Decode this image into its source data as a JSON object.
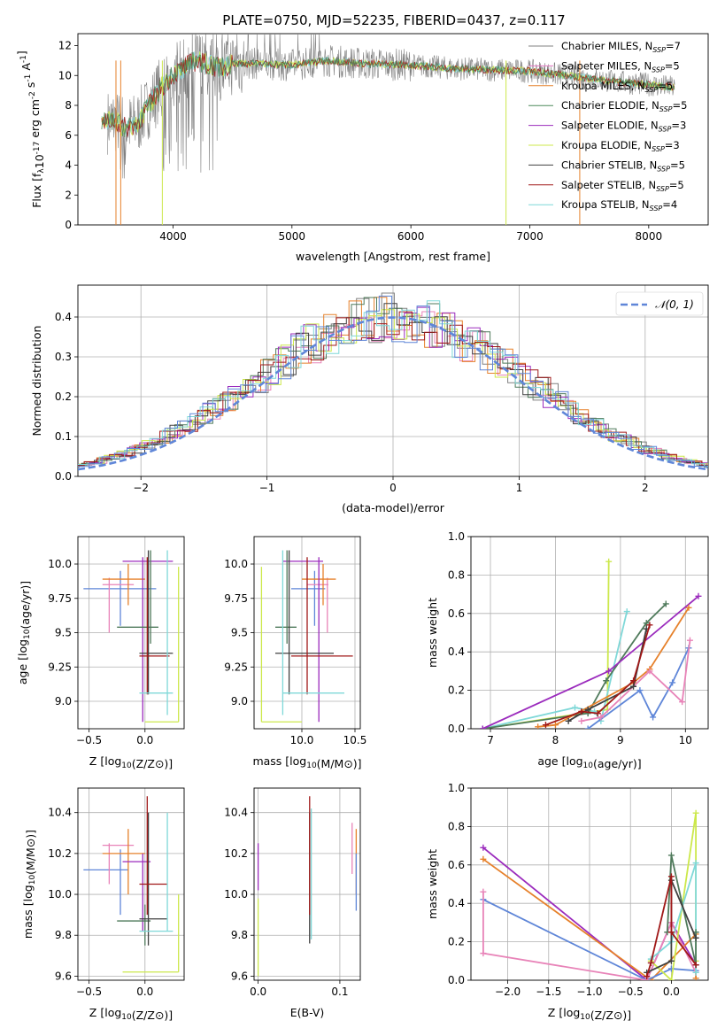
{
  "title": "PLATE=0750, MJD=52235, FIBERID=0437, z=0.117",
  "colors": {
    "Chabrier MILES": "#808080",
    "Salpeter MILES": "#e377c2",
    "Kroupa MILES": "#e6812b",
    "Chabrier ELODIE": "#4f8a5b",
    "Salpeter ELODIE": "#9b2bbd",
    "Kroupa ELODIE": "#cce84b",
    "Chabrier STELIB": "#404040",
    "Salpeter STELIB": "#a01818",
    "Kroupa STELIB": "#7fd8d8",
    "blue": "#5f86d8",
    "pink": "#e883b8",
    "darkgreen": "#4f7a5b"
  },
  "chart_data": [
    {
      "id": "spectrum",
      "type": "line",
      "xlabel": "wavelength [Angstrom, rest frame]",
      "ylabel": "Flux [f_λ10^-17 erg cm^-2 s^-1 A^-1]",
      "xlim": [
        3200,
        8500
      ],
      "ylim": [
        0,
        12.8
      ],
      "xticks": [
        4000,
        5000,
        6000,
        7000,
        8000
      ],
      "yticks": [
        0,
        2,
        4,
        6,
        8,
        10,
        12
      ],
      "legend": {
        "position": "top-right",
        "entries": [
          {
            "label": "Chabrier MILES, N",
            "sub": "SSP",
            "suffix": "=7"
          },
          {
            "label": "Salpeter MILES, N",
            "sub": "SSP",
            "suffix": "=5"
          },
          {
            "label": "Kroupa MILES, N",
            "sub": "SSP",
            "suffix": "=5"
          },
          {
            "label": "Chabrier ELODIE, N",
            "sub": "SSP",
            "suffix": "=5"
          },
          {
            "label": "Salpeter ELODIE, N",
            "sub": "SSP",
            "suffix": "=3"
          },
          {
            "label": "Kroupa ELODIE, N",
            "sub": "SSP",
            "suffix": "=3"
          },
          {
            "label": "Chabrier STELIB, N",
            "sub": "SSP",
            "suffix": "=5"
          },
          {
            "label": "Salpeter STELIB, N",
            "sub": "SSP",
            "suffix": "=5"
          },
          {
            "label": "Kroupa STELIB, N",
            "sub": "SSP",
            "suffix": "=4"
          }
        ]
      },
      "data_trend": {
        "x": [
          3400,
          3500,
          3600,
          3700,
          3800,
          3900,
          4000,
          4100,
          4200,
          4300,
          4400,
          4500,
          4700,
          5000,
          5300,
          5600,
          6000,
          6300,
          6600,
          7000,
          7300,
          7500,
          7700,
          8000,
          8200
        ],
        "y": [
          6.8,
          7.0,
          6.5,
          6.8,
          8.0,
          9.2,
          10.0,
          10.6,
          11.0,
          10.7,
          10.5,
          10.8,
          10.8,
          10.7,
          11.0,
          10.8,
          10.7,
          10.5,
          10.4,
          10.3,
          10.0,
          9.8,
          9.6,
          9.4,
          9.2
        ]
      },
      "model_edges": [
        {
          "color": "Kroupa MILES",
          "x": [
            3520,
            3560,
            7420
          ]
        },
        {
          "color": "Kroupa ELODIE",
          "x": [
            3910,
            6800
          ]
        }
      ]
    },
    {
      "id": "residuals",
      "type": "histogram",
      "xlabel": "(data-model)/error",
      "ylabel": "Normed distribution",
      "xlim": [
        -2.5,
        2.5
      ],
      "ylim": [
        0,
        0.48
      ],
      "xticks": [
        -2,
        -1,
        0,
        1,
        2
      ],
      "yticks": [
        0.0,
        0.1,
        0.2,
        0.3,
        0.4
      ],
      "reference_label": "𝒩(0, 1)",
      "legend_position": "top-right"
    },
    {
      "id": "age_vs_Z",
      "type": "errorbar",
      "xlabel": "Z [log10(Z/Z⊙)]",
      "ylabel": "age  [log10(age/yr)]",
      "xlim": [
        -0.6,
        0.35
      ],
      "ylim": [
        8.8,
        10.2
      ],
      "xticks": [
        -0.5,
        0.0
      ],
      "yticks": [
        9.0,
        9.25,
        9.5,
        9.75,
        10.0
      ],
      "points": [
        {
          "c": "blue",
          "x": -0.22,
          "xlo": -0.55,
          "xhi": 0.1,
          "y": 9.82,
          "ylo": 9.55,
          "yhi": 9.95
        },
        {
          "c": "pink",
          "x": -0.32,
          "xlo": -0.38,
          "xhi": -0.1,
          "y": 9.85,
          "ylo": 9.5,
          "yhi": 9.9
        },
        {
          "c": "Kroupa MILES",
          "x": -0.15,
          "xlo": -0.38,
          "xhi": 0.0,
          "y": 9.89,
          "ylo": 9.7,
          "yhi": 10.0
        },
        {
          "c": "Salpeter ELODIE",
          "x": -0.02,
          "xlo": -0.2,
          "xhi": 0.25,
          "y": 10.02,
          "ylo": 8.85,
          "yhi": 10.05
        },
        {
          "c": "darkgreen",
          "x": 0.05,
          "xlo": -0.25,
          "xhi": 0.12,
          "y": 9.54,
          "ylo": 9.42,
          "yhi": 10.1
        },
        {
          "c": "Chabrier STELIB",
          "x": 0.03,
          "xlo": -0.05,
          "xhi": 0.25,
          "y": 9.35,
          "ylo": 9.05,
          "yhi": 10.1
        },
        {
          "c": "Salpeter STELIB",
          "x": 0.02,
          "xlo": -0.05,
          "xhi": 0.22,
          "y": 9.33,
          "ylo": 9.05,
          "yhi": 10.05
        },
        {
          "c": "Kroupa STELIB",
          "x": 0.2,
          "xlo": -0.05,
          "xhi": 0.25,
          "y": 9.06,
          "ylo": 8.9,
          "yhi": 10.1
        },
        {
          "c": "Kroupa ELODIE",
          "x": 0.3,
          "xlo": 0.0,
          "xhi": 0.3,
          "y": 8.85,
          "ylo": 8.85,
          "yhi": 9.98
        }
      ]
    },
    {
      "id": "age_vs_mass",
      "type": "errorbar",
      "xlabel": "mass [log10(M/M⊙)]",
      "ylabel": "",
      "xlim": [
        9.55,
        10.55
      ],
      "ylim": [
        8.8,
        10.2
      ],
      "xticks": [
        10.0,
        10.5
      ],
      "yticks": [
        9.0,
        9.25,
        9.5,
        9.75,
        10.0
      ],
      "points": [
        {
          "c": "blue",
          "x": 10.12,
          "xlo": 9.9,
          "xhi": 10.22,
          "y": 9.82,
          "ylo": 9.55,
          "yhi": 9.95
        },
        {
          "c": "pink",
          "x": 10.24,
          "xlo": 10.05,
          "xhi": 10.25,
          "y": 9.85,
          "ylo": 9.5,
          "yhi": 9.9
        },
        {
          "c": "Kroupa MILES",
          "x": 10.2,
          "xlo": 10.0,
          "xhi": 10.32,
          "y": 9.89,
          "ylo": 9.7,
          "yhi": 10.0
        },
        {
          "c": "Salpeter ELODIE",
          "x": 10.16,
          "xlo": 9.82,
          "xhi": 10.2,
          "y": 10.02,
          "ylo": 8.85,
          "yhi": 10.05
        },
        {
          "c": "darkgreen",
          "x": 9.86,
          "xlo": 9.75,
          "xhi": 9.95,
          "y": 9.54,
          "ylo": 9.42,
          "yhi": 10.1
        },
        {
          "c": "Chabrier STELIB",
          "x": 9.88,
          "xlo": 9.75,
          "xhi": 10.3,
          "y": 9.35,
          "ylo": 9.05,
          "yhi": 10.1
        },
        {
          "c": "Salpeter STELIB",
          "x": 10.05,
          "xlo": 9.9,
          "xhi": 10.48,
          "y": 9.33,
          "ylo": 9.05,
          "yhi": 10.05
        },
        {
          "c": "Kroupa STELIB",
          "x": 9.82,
          "xlo": 9.82,
          "xhi": 10.4,
          "y": 9.06,
          "ylo": 8.9,
          "yhi": 10.1
        },
        {
          "c": "Kroupa ELODIE",
          "x": 9.62,
          "xlo": 9.62,
          "xhi": 10.0,
          "y": 8.85,
          "ylo": 8.85,
          "yhi": 9.98
        }
      ]
    },
    {
      "id": "weight_vs_age",
      "type": "line",
      "xlabel": "age  [log10(age/yr)]",
      "ylabel": "mass weight",
      "xlim": [
        6.7,
        10.35
      ],
      "ylim": [
        0,
        1.0
      ],
      "xticks": [
        7,
        8,
        9,
        10
      ],
      "yticks": [
        0.0,
        0.2,
        0.4,
        0.6,
        0.8,
        1.0
      ],
      "series": [
        {
          "c": "Kroupa ELODIE",
          "x": [
            6.88,
            8.8,
            8.82
          ],
          "y": [
            0.0,
            0.1,
            0.87
          ]
        },
        {
          "c": "Kroupa STELIB",
          "x": [
            6.88,
            8.3,
            8.6,
            8.7,
            9.1
          ],
          "y": [
            0.0,
            0.11,
            0.09,
            0.04,
            0.61
          ]
        },
        {
          "c": "darkgreen",
          "x": [
            6.88,
            8.5,
            8.78,
            9.4,
            9.7
          ],
          "y": [
            0.0,
            0.08,
            0.25,
            0.55,
            0.65
          ]
        },
        {
          "c": "Salpeter ELODIE",
          "x": [
            6.88,
            8.82,
            10.2
          ],
          "y": [
            0.0,
            0.3,
            0.69
          ]
        },
        {
          "c": "Kroupa MILES",
          "x": [
            7.73,
            8.0,
            9.2,
            9.45,
            10.05
          ],
          "y": [
            0.01,
            0.02,
            0.24,
            0.31,
            0.63
          ]
        },
        {
          "c": "blue",
          "x": [
            8.5,
            9.3,
            9.5,
            9.8,
            10.05
          ],
          "y": [
            0.0,
            0.2,
            0.06,
            0.24,
            0.42
          ]
        },
        {
          "c": "pink",
          "x": [
            8.4,
            8.7,
            9.45,
            9.95,
            10.07
          ],
          "y": [
            0.04,
            0.06,
            0.3,
            0.14,
            0.46
          ]
        },
        {
          "c": "Chabrier STELIB",
          "x": [
            8.2,
            8.5,
            9.2,
            9.4
          ],
          "y": [
            0.04,
            0.1,
            0.22,
            0.52
          ]
        },
        {
          "c": "Salpeter STELIB",
          "x": [
            7.85,
            8.4,
            8.65,
            9.2,
            9.45
          ],
          "y": [
            0.02,
            0.09,
            0.08,
            0.25,
            0.54
          ]
        }
      ]
    },
    {
      "id": "mass_vs_Z",
      "type": "errorbar",
      "xlabel": "Z [log10(Z/Z⊙)]",
      "ylabel": "mass [log10(M/M⊙)]",
      "xlim": [
        -0.6,
        0.35
      ],
      "ylim": [
        9.58,
        10.52
      ],
      "xticks": [
        -0.5,
        0.0
      ],
      "yticks": [
        9.6,
        9.8,
        10.0,
        10.2,
        10.4
      ],
      "points": [
        {
          "c": "blue",
          "x": -0.22,
          "xlo": -0.55,
          "xhi": -0.15,
          "y": 10.12,
          "ylo": 9.9,
          "yhi": 10.22
        },
        {
          "c": "pink",
          "x": -0.32,
          "xlo": -0.38,
          "xhi": -0.1,
          "y": 10.24,
          "ylo": 10.05,
          "yhi": 10.25
        },
        {
          "c": "Kroupa MILES",
          "x": -0.15,
          "xlo": -0.38,
          "xhi": 0.0,
          "y": 10.2,
          "ylo": 10.0,
          "yhi": 10.32
        },
        {
          "c": "Salpeter ELODIE",
          "x": -0.02,
          "xlo": -0.2,
          "xhi": 0.05,
          "y": 10.16,
          "ylo": 9.82,
          "yhi": 10.2
        },
        {
          "c": "darkgreen",
          "x": 0.0,
          "xlo": -0.25,
          "xhi": 0.05,
          "y": 9.87,
          "ylo": 9.75,
          "yhi": 9.95
        },
        {
          "c": "Chabrier STELIB",
          "x": 0.03,
          "xlo": -0.05,
          "xhi": 0.2,
          "y": 9.88,
          "ylo": 9.75,
          "yhi": 10.4
        },
        {
          "c": "Salpeter STELIB",
          "x": 0.02,
          "xlo": -0.05,
          "xhi": 0.2,
          "y": 10.05,
          "ylo": 9.9,
          "yhi": 10.48
        },
        {
          "c": "Kroupa STELIB",
          "x": 0.2,
          "xlo": -0.05,
          "xhi": 0.25,
          "y": 9.82,
          "ylo": 9.82,
          "yhi": 10.4
        },
        {
          "c": "Kroupa ELODIE",
          "x": 0.3,
          "xlo": -0.2,
          "xhi": 0.3,
          "y": 9.62,
          "ylo": 9.62,
          "yhi": 10.0
        }
      ]
    },
    {
      "id": "mass_vs_ebv",
      "type": "errorbar",
      "xlabel": "E(B-V)",
      "ylabel": "",
      "xlim": [
        -0.005,
        0.125
      ],
      "ylim": [
        9.58,
        10.52
      ],
      "xticks": [
        0.0,
        0.1
      ],
      "yticks": [
        9.6,
        9.8,
        10.0,
        10.2,
        10.4
      ],
      "points": [
        {
          "c": "Salpeter ELODIE",
          "x": 0.0,
          "y": 10.16,
          "ylo": 10.02,
          "yhi": 10.25
        },
        {
          "c": "Kroupa ELODIE",
          "x": 0.0,
          "y": 9.62,
          "ylo": 9.6,
          "yhi": 9.98
        },
        {
          "c": "Chabrier STELIB",
          "x": 0.063,
          "y": 9.88,
          "ylo": 9.76,
          "yhi": 10.4
        },
        {
          "c": "Salpeter STELIB",
          "x": 0.063,
          "y": 10.05,
          "ylo": 9.9,
          "yhi": 10.48
        },
        {
          "c": "Kroupa STELIB",
          "x": 0.065,
          "y": 9.82,
          "ylo": 9.78,
          "yhi": 10.42
        },
        {
          "c": "pink",
          "x": 0.115,
          "y": 10.24,
          "ylo": 10.1,
          "yhi": 10.35
        },
        {
          "c": "Kroupa MILES",
          "x": 0.12,
          "y": 10.2,
          "ylo": 10.0,
          "yhi": 10.32
        },
        {
          "c": "blue",
          "x": 0.12,
          "y": 10.12,
          "ylo": 9.92,
          "yhi": 10.2
        }
      ]
    },
    {
      "id": "weight_vs_Z",
      "type": "line",
      "xlabel": "Z [log10(Z/Z⊙)]",
      "ylabel": "mass weight",
      "xlim": [
        -2.45,
        0.45
      ],
      "ylim": [
        0,
        1.0
      ],
      "xticks": [
        -2.0,
        -1.5,
        -1.0,
        -0.5,
        0.0
      ],
      "yticks": [
        0.0,
        0.2,
        0.4,
        0.6,
        0.8,
        1.0
      ],
      "series": [
        {
          "c": "Salpeter ELODIE",
          "x": [
            -2.3,
            -0.3,
            0.0,
            0.3
          ],
          "y": [
            0.69,
            0.0,
            0.3,
            0.08
          ]
        },
        {
          "c": "Kroupa MILES",
          "x": [
            -2.3,
            -0.25,
            0.3,
            0.3
          ],
          "y": [
            0.63,
            0.0,
            0.24,
            0.01
          ]
        },
        {
          "c": "blue",
          "x": [
            -2.3,
            -0.3,
            0.0,
            0.3,
            0.3
          ],
          "y": [
            0.42,
            0.0,
            0.06,
            0.05,
            0.25
          ]
        },
        {
          "c": "pink",
          "x": [
            -2.3,
            -2.3,
            -0.3,
            0.0,
            0.3
          ],
          "y": [
            0.46,
            0.14,
            0.0,
            0.3,
            0.04
          ]
        },
        {
          "c": "Kroupa ELODIE",
          "x": [
            -0.25,
            0.0,
            0.3,
            0.3
          ],
          "y": [
            0.1,
            0.0,
            0.87,
            0.1
          ]
        },
        {
          "c": "Kroupa STELIB",
          "x": [
            -0.25,
            0.0,
            0.3,
            0.3
          ],
          "y": [
            0.11,
            0.2,
            0.61,
            0.04
          ]
        },
        {
          "c": "darkgreen",
          "x": [
            -0.05,
            0.0,
            0.3,
            0.3
          ],
          "y": [
            0.25,
            0.65,
            0.08,
            0.25
          ]
        },
        {
          "c": "Chabrier STELIB",
          "x": [
            -0.3,
            0.0,
            0.0,
            0.3
          ],
          "y": [
            0.04,
            0.1,
            0.52,
            0.22
          ]
        },
        {
          "c": "Salpeter STELIB",
          "x": [
            -0.3,
            -0.25,
            0.0,
            0.0,
            0.3
          ],
          "y": [
            0.02,
            0.09,
            0.54,
            0.25,
            0.08
          ]
        }
      ]
    }
  ]
}
